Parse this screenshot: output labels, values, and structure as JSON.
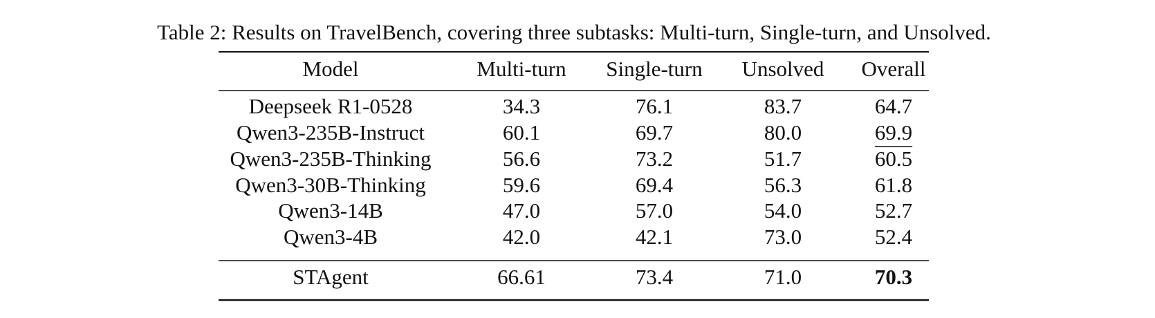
{
  "caption": "Table 2: Results on TravelBench, covering three subtasks: Multi-turn, Single-turn, and Unsolved.",
  "table": {
    "header": [
      "Model",
      "Multi-turn",
      "Single-turn",
      "Unsolved",
      "Overall"
    ],
    "rows": [
      [
        "Deepseek R1-0528",
        "34.3",
        "76.1",
        "83.7",
        "64.7"
      ],
      [
        "Qwen3-235B-Instruct",
        "60.1",
        "69.7",
        "80.0",
        "69.9"
      ],
      [
        "Qwen3-235B-Thinking",
        "56.6",
        "73.2",
        "51.7",
        "60.5"
      ],
      [
        "Qwen3-30B-Thinking",
        "59.6",
        "69.4",
        "56.3",
        "61.8"
      ],
      [
        "Qwen3-14B",
        "47.0",
        "57.0",
        "54.0",
        "52.7"
      ],
      [
        "Qwen3-4B",
        "42.0",
        "42.1",
        "73.0",
        "52.4"
      ]
    ],
    "footer_rows": [
      [
        "STAgent",
        "66.61",
        "73.4",
        "71.0",
        "70.3"
      ]
    ]
  }
}
